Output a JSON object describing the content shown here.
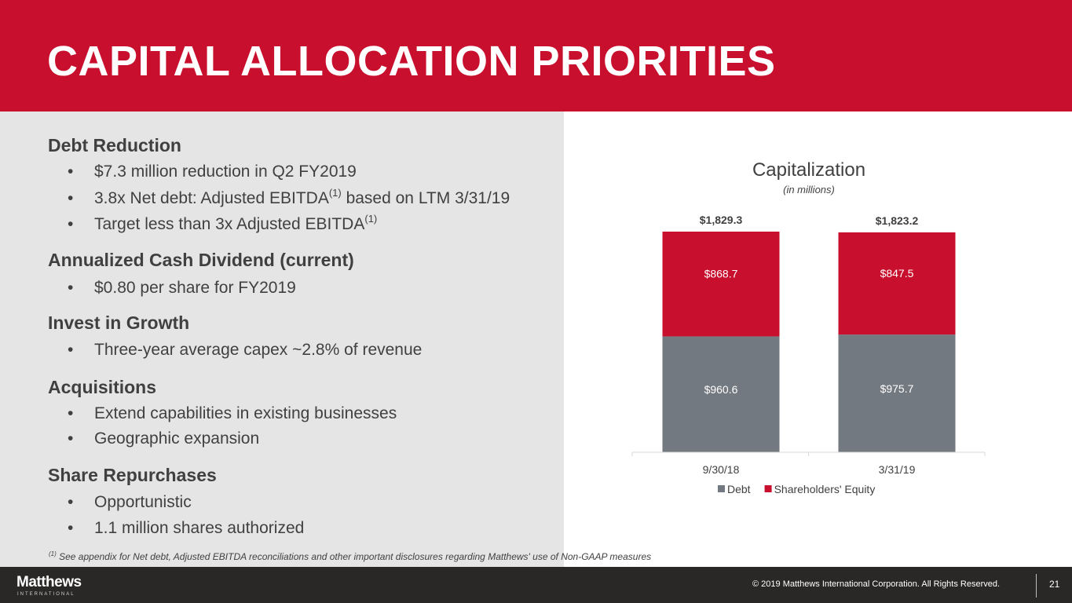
{
  "header": {
    "title": "CAPITAL ALLOCATION PRIORITIES"
  },
  "sections": [
    {
      "heading": "Debt Reduction",
      "bullets": [
        {
          "text": "$7.3 million reduction in Q2 FY2019"
        },
        {
          "text": "3.8x Net debt: Adjusted EBITDA",
          "sup": "(1)",
          "after": " based on LTM 3/31/19"
        },
        {
          "text": "Target less than 3x Adjusted EBITDA",
          "sup": "(1)"
        }
      ]
    },
    {
      "heading": "Annualized Cash Dividend (current)",
      "bullets": [
        {
          "text": "$0.80 per share for FY2019"
        }
      ]
    },
    {
      "heading": "Invest in Growth",
      "bullets": [
        {
          "text": "Three-year average capex ~2.8% of revenue"
        }
      ]
    },
    {
      "heading": "Acquisitions",
      "bullets": [
        {
          "text": "Extend capabilities in existing businesses"
        },
        {
          "text": "Geographic expansion"
        }
      ]
    },
    {
      "heading": "Share Repurchases",
      "bullets": [
        {
          "text": "Opportunistic"
        },
        {
          "text": "1.1 million shares authorized"
        }
      ]
    }
  ],
  "bullet_char": "•",
  "footnote": {
    "sup": "(1)",
    "text": " See appendix for Net debt, Adjusted EBITDA reconciliations and other important disclosures regarding Matthews' use of Non-GAAP measures"
  },
  "footer": {
    "logo": "Matthews",
    "logo_sub": "INTERNATIONAL",
    "copyright": "© 2019 Matthews International Corporation. All Rights Reserved.",
    "page_number": "21"
  },
  "colors": {
    "brand_red": "#c8102e",
    "debt_gray": "#737980",
    "panel_gray": "#e5e5e6",
    "footer_dark": "#2a2827"
  },
  "chart_data": {
    "type": "bar",
    "stacked": true,
    "title": "Capitalization",
    "subtitle": "(in millions)",
    "categories": [
      "9/30/18",
      "3/31/19"
    ],
    "series": [
      {
        "name": "Debt",
        "color": "#737980",
        "values": [
          960.6,
          975.7
        ],
        "labels": [
          "$960.6",
          "$975.7"
        ]
      },
      {
        "name": "Shareholders' Equity",
        "color": "#c8102e",
        "values": [
          868.7,
          847.5
        ],
        "labels": [
          "$868.7",
          "$847.5"
        ]
      }
    ],
    "totals": [
      1829.3,
      1823.2
    ],
    "total_labels": [
      "$1,829.3",
      "$1,823.2"
    ],
    "ylim": [
      0,
      1829.3
    ],
    "grid": false,
    "legend": "bottom"
  }
}
